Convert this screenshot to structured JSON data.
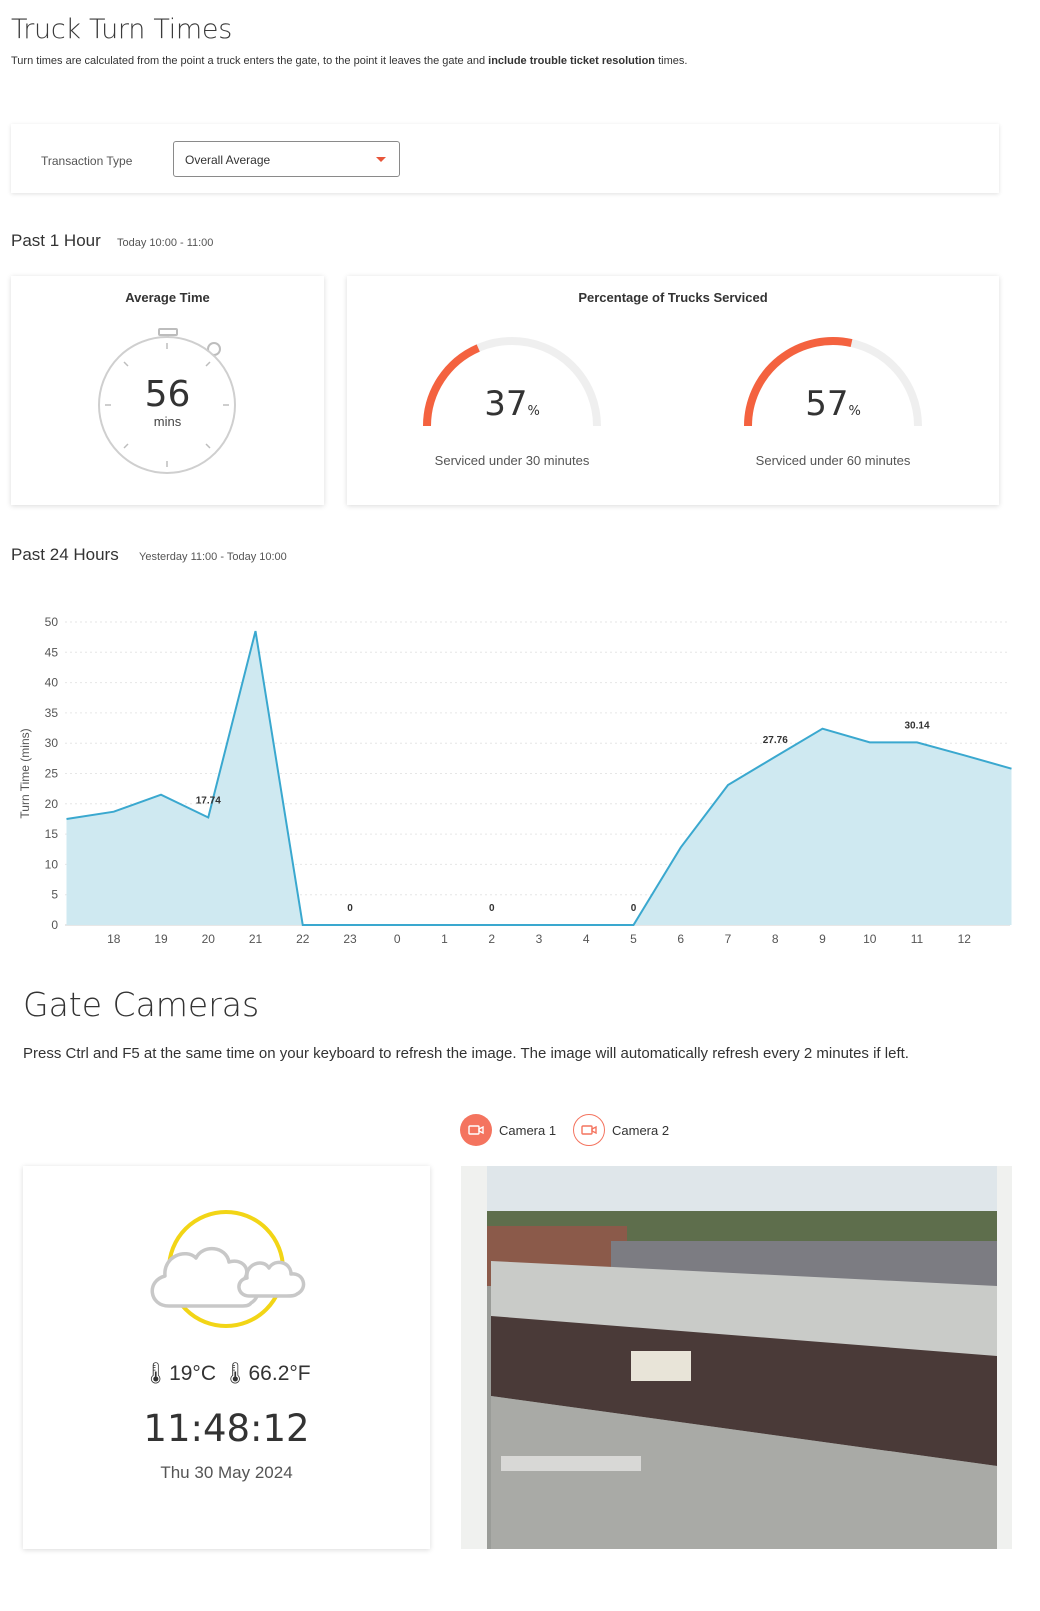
{
  "page": {
    "title": "Truck Turn Times",
    "subtitle_pre": "Turn times are calculated from the point a truck enters the gate, to the point it leaves the gate and ",
    "subtitle_bold": "include trouble ticket resolution",
    "subtitle_post": " times."
  },
  "filter": {
    "label": "Transaction Type",
    "selected": "Overall Average"
  },
  "past_hour": {
    "heading": "Past 1 Hour",
    "range": "Today 10:00 - 11:00",
    "average": {
      "title": "Average Time",
      "value": "56",
      "unit": "mins"
    },
    "serviced": {
      "title": "Percentage of Trucks Serviced",
      "gauges": [
        {
          "value": "37",
          "fraction": 0.37,
          "unit": "%",
          "caption": "Serviced under 30 minutes"
        },
        {
          "value": "57",
          "fraction": 0.57,
          "unit": "%",
          "caption": "Serviced under 60 minutes"
        }
      ]
    }
  },
  "past_day": {
    "heading": "Past 24 Hours",
    "range": "Yesterday 11:00 - Today 10:00"
  },
  "chart_data": {
    "type": "area",
    "ylabel": "Turn Time (mins)",
    "ylim": [
      0,
      50
    ],
    "yticks": [
      0,
      5,
      10,
      15,
      20,
      25,
      30,
      35,
      40,
      45,
      50
    ],
    "x": [
      "17",
      "18",
      "19",
      "20",
      "21",
      "22",
      "23",
      "0",
      "1",
      "2",
      "3",
      "4",
      "5",
      "6",
      "7",
      "8",
      "9",
      "10",
      "11",
      "12",
      "13"
    ],
    "xtick_labels": [
      "18",
      "19",
      "20",
      "21",
      "22",
      "23",
      "0",
      "1",
      "2",
      "3",
      "4",
      "5",
      "6",
      "7",
      "8",
      "9",
      "10",
      "11",
      "12"
    ],
    "values": [
      17.5,
      18.7,
      21.5,
      17.74,
      48.5,
      0,
      0,
      0,
      0,
      0,
      0,
      0,
      0,
      12.8,
      23.1,
      27.76,
      32.4,
      30.14,
      30.14,
      28.0,
      25.8
    ],
    "data_labels": [
      {
        "x": "20",
        "value": 17.74,
        "text": "17.74"
      },
      {
        "x": "23",
        "value": 0,
        "text": "0"
      },
      {
        "x": "2",
        "value": 0,
        "text": "0"
      },
      {
        "x": "5",
        "value": 0,
        "text": "0"
      },
      {
        "x": "8",
        "value": 27.76,
        "text": "27.76"
      },
      {
        "x": "11",
        "value": 30.14,
        "text": "30.14"
      }
    ],
    "grid": true,
    "colors": {
      "line": "#3aa8cf",
      "fill": "#cfe9f1"
    }
  },
  "cameras": {
    "title": "Gate Cameras",
    "instructions": "Press Ctrl and F5 at the same time on your keyboard to refresh the image. The image will automatically refresh every 2 minutes if left.",
    "buttons": [
      {
        "label": "Camera 1",
        "active": true
      },
      {
        "label": "Camera 2",
        "active": false
      }
    ]
  },
  "weather": {
    "icon": "partly-cloudy-icon",
    "temp_c": "19°C",
    "temp_f": "66.2°F",
    "time": "11:48:12",
    "date": "Thu 30 May 2024"
  },
  "colors": {
    "accent": "#f4745f",
    "gauge_arc": "#f4623f",
    "gauge_track": "#efefef",
    "sun": "#f2d516"
  }
}
